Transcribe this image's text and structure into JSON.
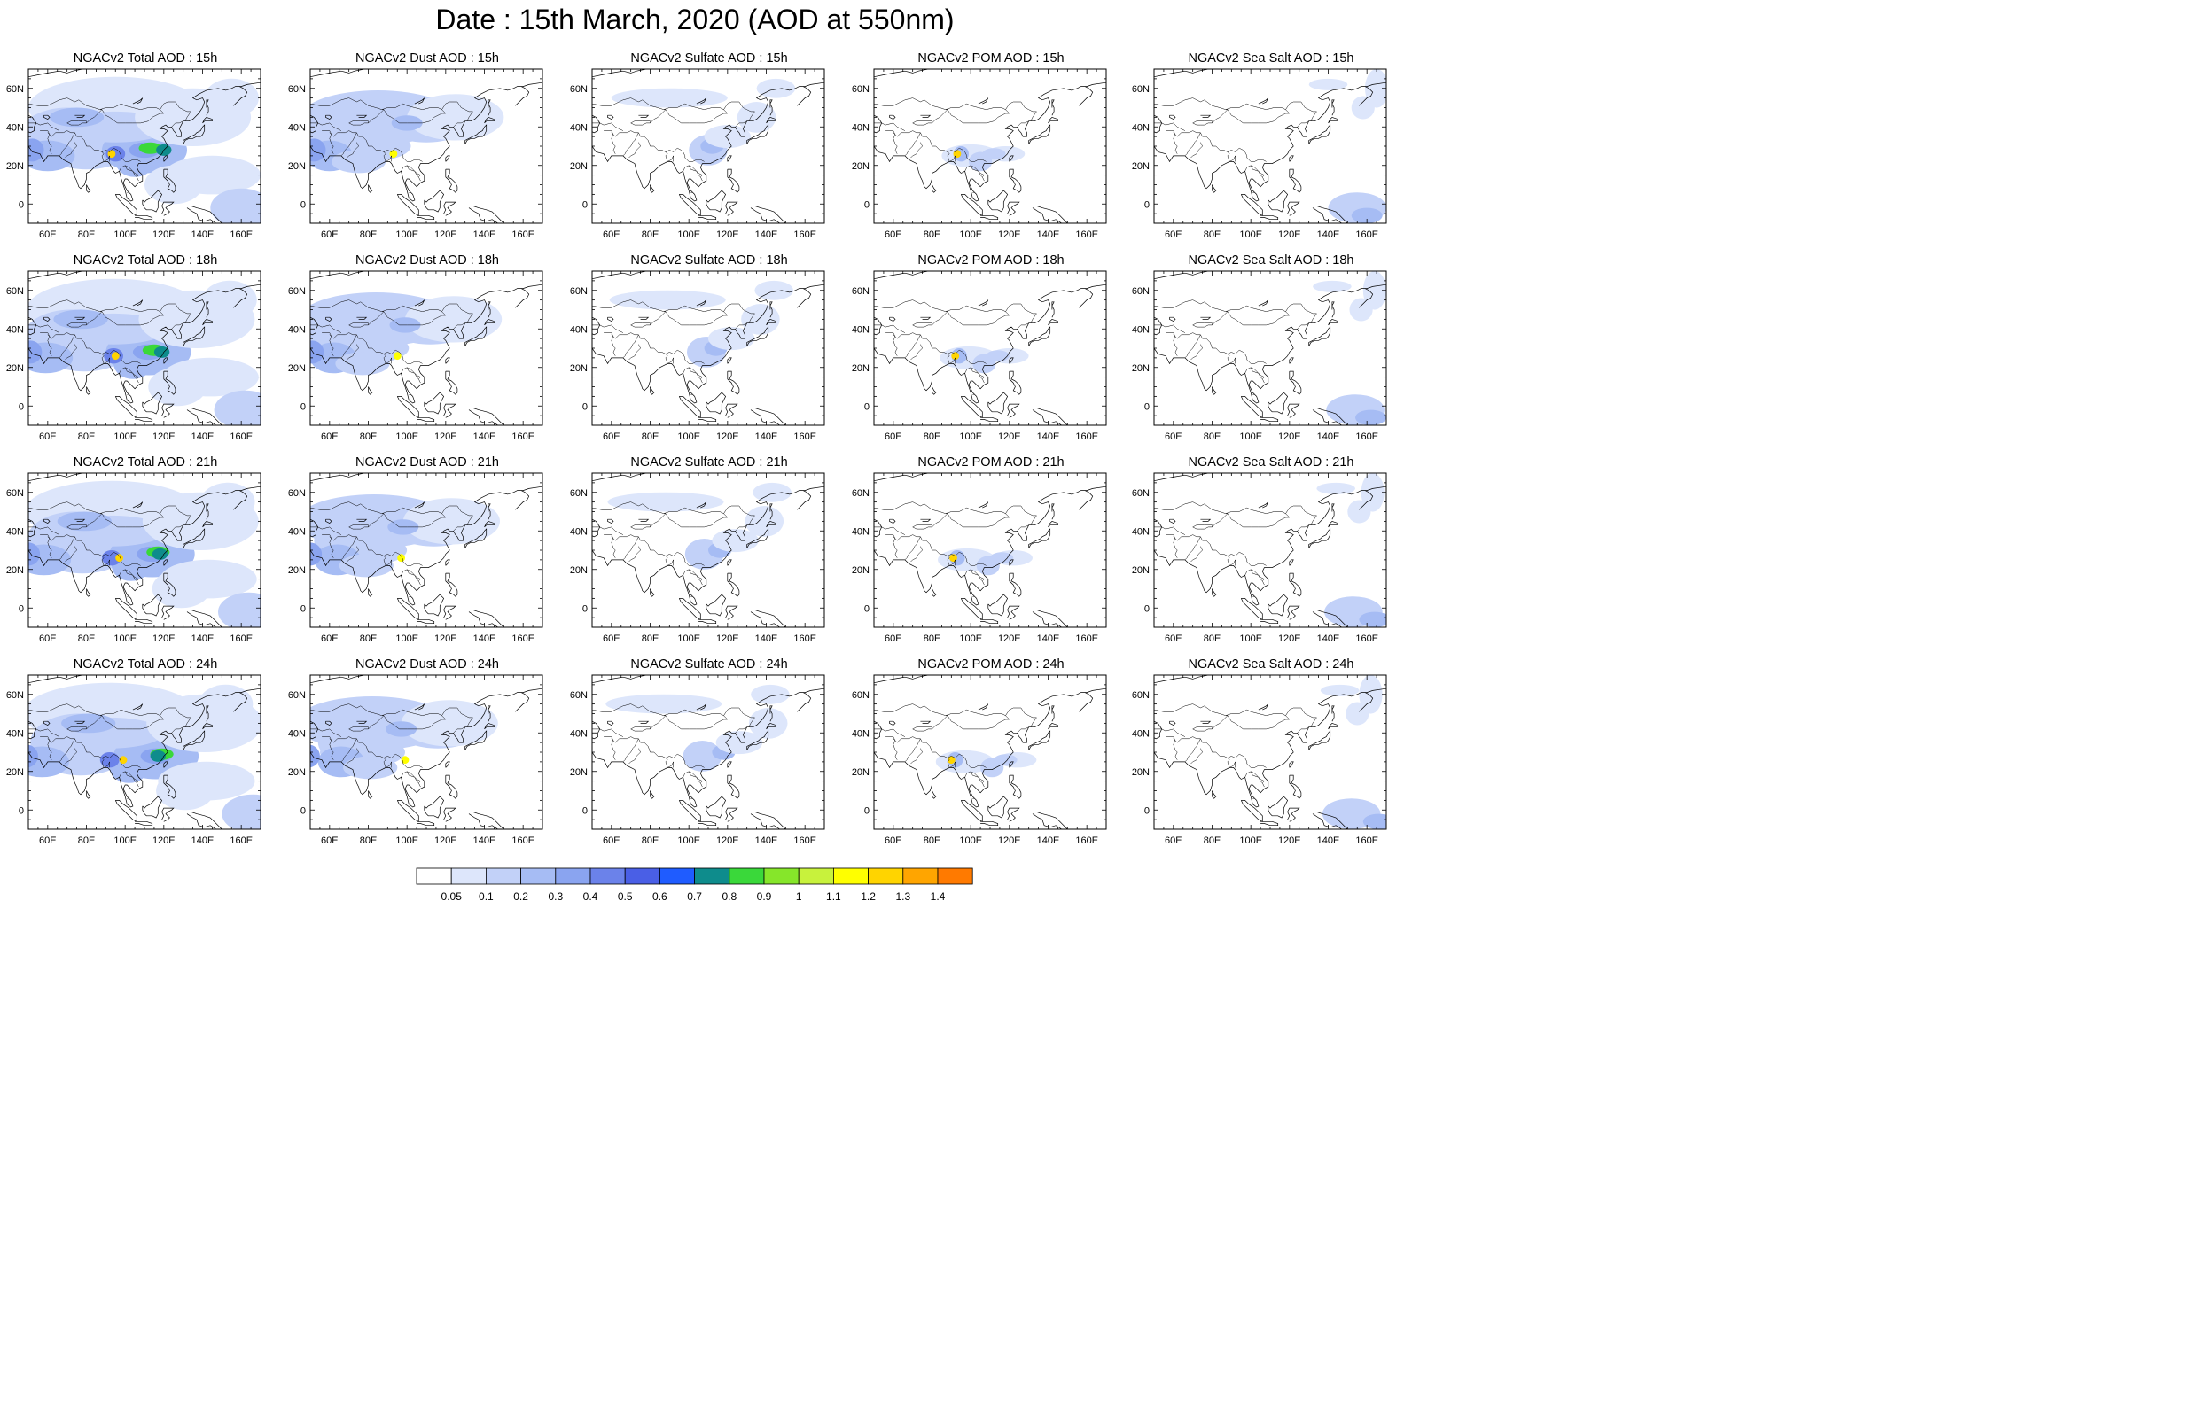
{
  "title": "Date : 15th March, 2020 (AOD at 550nm)",
  "rows": [
    {
      "time": "15h",
      "panels": [
        {
          "label": "NGACv2 Total AOD : 15h",
          "species": "total"
        },
        {
          "label": "NGACv2 Dust AOD : 15h",
          "species": "dust"
        },
        {
          "label": "NGACv2 Sulfate AOD : 15h",
          "species": "sulfate"
        },
        {
          "label": "NGACv2 POM AOD : 15h",
          "species": "pom"
        },
        {
          "label": "NGACv2 Sea Salt AOD : 15h",
          "species": "seasalt"
        }
      ]
    },
    {
      "time": "18h",
      "panels": [
        {
          "label": "NGACv2 Total AOD : 18h",
          "species": "total"
        },
        {
          "label": "NGACv2 Dust AOD : 18h",
          "species": "dust"
        },
        {
          "label": "NGACv2 Sulfate AOD : 18h",
          "species": "sulfate"
        },
        {
          "label": "NGACv2 POM AOD : 18h",
          "species": "pom"
        },
        {
          "label": "NGACv2 Sea Salt AOD : 18h",
          "species": "seasalt"
        }
      ]
    },
    {
      "time": "21h",
      "panels": [
        {
          "label": "NGACv2 Total AOD : 21h",
          "species": "total"
        },
        {
          "label": "NGACv2 Dust AOD : 21h",
          "species": "dust"
        },
        {
          "label": "NGACv2 Sulfate AOD : 21h",
          "species": "sulfate"
        },
        {
          "label": "NGACv2 POM AOD : 21h",
          "species": "pom"
        },
        {
          "label": "NGACv2 Sea Salt AOD : 21h",
          "species": "seasalt"
        }
      ]
    },
    {
      "time": "24h",
      "panels": [
        {
          "label": "NGACv2 Total AOD : 24h",
          "species": "total"
        },
        {
          "label": "NGACv2 Dust AOD : 24h",
          "species": "dust"
        },
        {
          "label": "NGACv2 Sulfate AOD : 24h",
          "species": "sulfate"
        },
        {
          "label": "NGACv2 POM AOD : 24h",
          "species": "pom"
        },
        {
          "label": "NGACv2 Sea Salt  AOD : 24h",
          "species": "seasalt"
        }
      ]
    }
  ],
  "map": {
    "lon_range": [
      50,
      170
    ],
    "lat_range": [
      -10,
      70
    ],
    "x_ticks": [
      "60E",
      "80E",
      "100E",
      "120E",
      "140E",
      "160E"
    ],
    "x_tick_values": [
      60,
      80,
      100,
      120,
      140,
      160
    ],
    "y_ticks": [
      "60N",
      "40N",
      "20N",
      "0"
    ],
    "y_tick_values": [
      60,
      40,
      20,
      0
    ]
  },
  "colorbar": {
    "labels": [
      "0.05",
      "0.1",
      "0.2",
      "0.3",
      "0.4",
      "0.5",
      "0.6",
      "0.7",
      "0.8",
      "0.9",
      "1",
      "1.1",
      "1.2",
      "1.3",
      "1.4"
    ],
    "colors": [
      "#ffffff",
      "#dde6fb",
      "#c2d1f8",
      "#a6bcf4",
      "#8aa4f0",
      "#6b82ea",
      "#4a5fe6",
      "#1f5cff",
      "#0e8c8c",
      "#3ad83a",
      "#86e62a",
      "#c8f23c",
      "#ffff00",
      "#ffd400",
      "#ffa500",
      "#ff7a00",
      "#ff2a00"
    ]
  }
}
